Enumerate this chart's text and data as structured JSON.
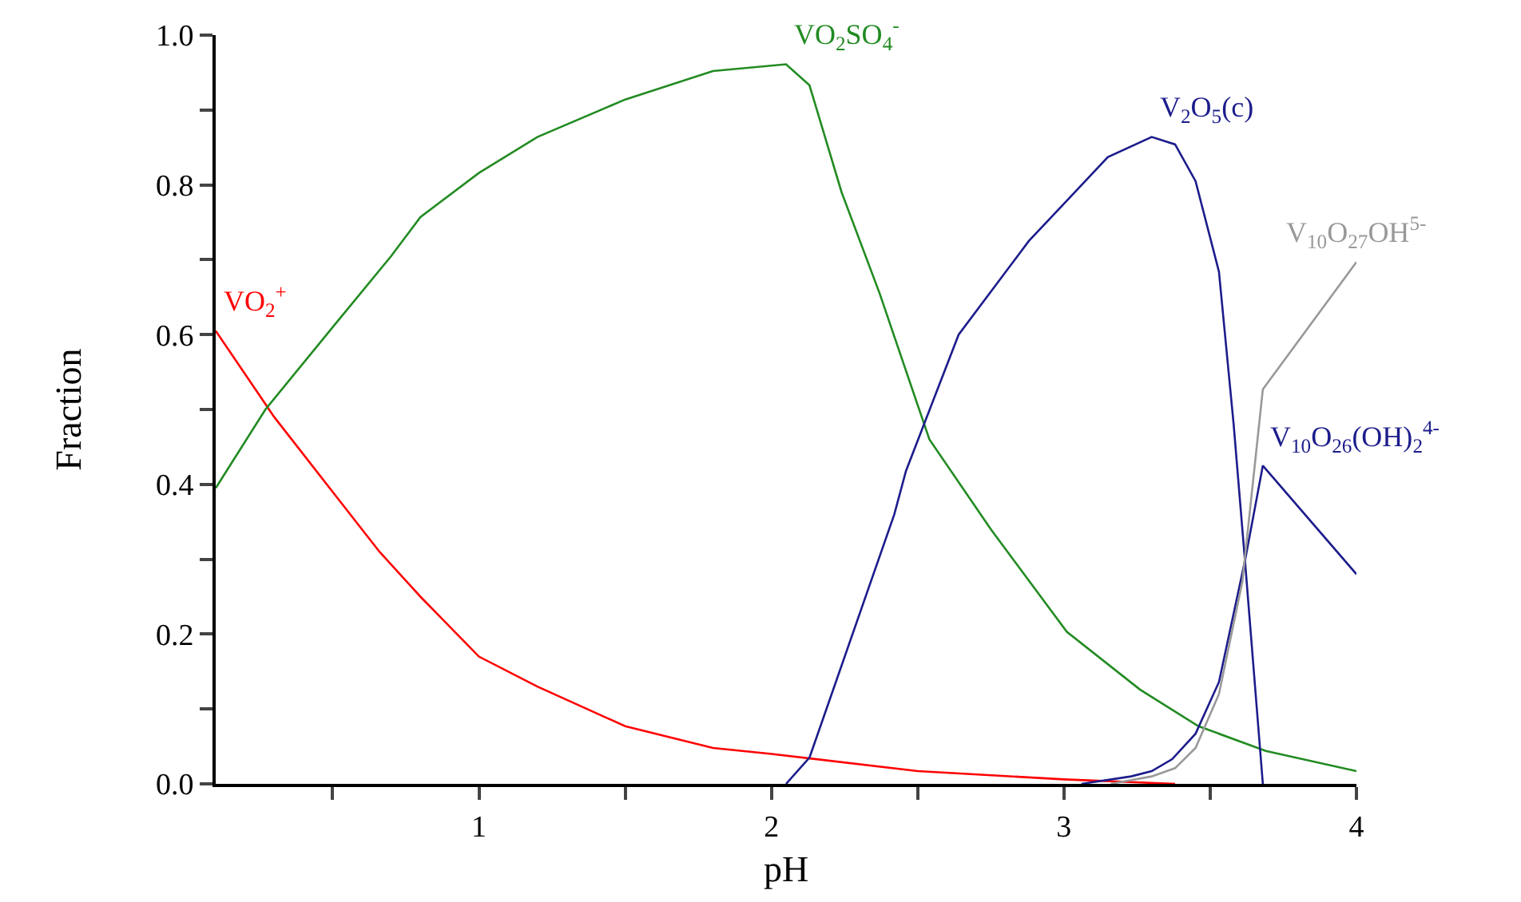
{
  "chart_data": {
    "type": "line",
    "xlabel": "pH",
    "ylabel": "Fraction",
    "xlim": [
      0.1,
      4
    ],
    "ylim": [
      0,
      1
    ],
    "xticks": [
      {
        "value": 0.5,
        "label": null
      },
      1,
      {
        "value": 1.5,
        "label": null
      },
      2,
      {
        "value": 2.5,
        "label": null
      },
      3,
      {
        "value": 3.5,
        "label": null
      },
      4
    ],
    "yticks": [
      {
        "value": 0,
        "label": "0.0"
      },
      {
        "value": 0.1,
        "label": null
      },
      0.2,
      {
        "value": 0.3,
        "label": null
      },
      0.4,
      {
        "value": 0.5,
        "label": null
      },
      0.6,
      {
        "value": 0.7,
        "label": null
      },
      0.8,
      {
        "value": 0.9,
        "label": null
      },
      {
        "value": 1,
        "label": "1.0"
      }
    ],
    "grid": false,
    "legend": false,
    "marker": "none",
    "line_style": "solid",
    "series": [
      {
        "name": "VO$_{2}$$^{+}$",
        "color": "#ff0000",
        "x": [
          0.1,
          0.3,
          0.5,
          0.66,
          0.8,
          1.0,
          1.2,
          1.5,
          1.8,
          2.0,
          2.5,
          3.0,
          3.38
        ],
        "values": [
          0.605,
          0.49,
          0.39,
          0.31,
          0.25,
          0.17,
          0.13,
          0.077,
          0.048,
          0.04,
          0.017,
          0.006,
          0.0
        ]
      },
      {
        "name": "VO$_{2}$SO$_{4}$$^{-}$",
        "color": "#228b22",
        "x": [
          0.1,
          0.27,
          0.5,
          0.7,
          0.8,
          1.0,
          1.2,
          1.5,
          1.8,
          2.05,
          2.13,
          2.24,
          2.37,
          2.54,
          2.75,
          3.01,
          3.26,
          3.46,
          3.69,
          4.0
        ],
        "values": [
          0.395,
          0.5,
          0.61,
          0.705,
          0.757,
          0.816,
          0.864,
          0.914,
          0.952,
          0.961,
          0.933,
          0.79,
          0.655,
          0.46,
          0.34,
          0.203,
          0.126,
          0.077,
          0.044,
          0.017
        ]
      },
      {
        "name": "V$_{2}$O$_{5}$(c)",
        "color": "#1c1c8c",
        "x": [
          2.05,
          2.13,
          2.42,
          2.46,
          2.64,
          2.88,
          3.15,
          3.3,
          3.38,
          3.45,
          3.53,
          3.58,
          3.62,
          3.68
        ],
        "values": [
          0.0,
          0.035,
          0.36,
          0.418,
          0.6,
          0.725,
          0.837,
          0.864,
          0.854,
          0.805,
          0.684,
          0.481,
          0.293,
          0.0
        ]
      },
      {
        "name": "V$_{10}$O$_{26}$(OH)$_{2}$$^{4-}$",
        "color": "#1c1c8c",
        "x": [
          3.06,
          3.23,
          3.3,
          3.37,
          3.45,
          3.53,
          3.62,
          3.68,
          4.0
        ],
        "values": [
          0.0,
          0.01,
          0.017,
          0.033,
          0.067,
          0.136,
          0.3,
          0.425,
          0.28
        ]
      },
      {
        "name": "V$_{10}$O$_{27}$OH$^{5-}$",
        "color": "#999999",
        "x": [
          3.16,
          3.3,
          3.38,
          3.45,
          3.53,
          3.61,
          3.68,
          4.0
        ],
        "values": [
          0.0,
          0.01,
          0.021,
          0.048,
          0.12,
          0.27,
          0.527,
          0.697
        ]
      }
    ]
  }
}
